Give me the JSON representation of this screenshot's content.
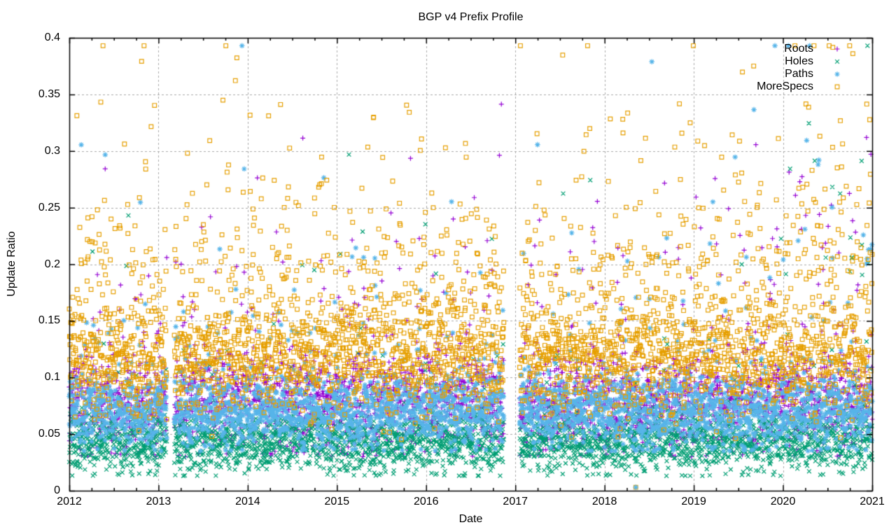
{
  "chart_data": {
    "type": "scatter",
    "title": "BGP v4 Prefix Profile",
    "xlabel": "Date",
    "ylabel": "Update Ratio",
    "x_axis": {
      "min": 2012,
      "max": 2021,
      "tick_labels": [
        "2012",
        "2013",
        "2014",
        "2015",
        "2016",
        "2017",
        "2018",
        "2019",
        "2020",
        "2021"
      ],
      "minor_ticks_per_interval": 3
    },
    "y_axis": {
      "min": 0,
      "max": 0.4,
      "tick_labels": [
        "0",
        "0.05",
        "0.1",
        "0.15",
        "0.2",
        "0.25",
        "0.3",
        "0.35",
        "0.4"
      ]
    },
    "grid": {
      "show": true,
      "color": "#a9a9a9",
      "dash": [
        3,
        3
      ]
    },
    "legend": {
      "position": "top-right-inside",
      "entries": [
        "Roots",
        "Holes",
        "Paths",
        "MoreSpecs"
      ]
    },
    "sampling": "daily points per series, 2012-01 through 2021-01",
    "data_gaps": [
      [
        2013.094,
        2013.175
      ],
      [
        2016.873,
        2017.046
      ]
    ],
    "seed": 1337,
    "series": [
      {
        "name": "Roots",
        "marker": "plus",
        "color": "#9400D3",
        "distribution": {
          "components": [
            {
              "weight": 0.9,
              "type": "normal",
              "mu": 0.078,
              "sigma": 0.02
            },
            {
              "weight": 0.094,
              "type": "normal",
              "mu": 0.145,
              "sigma": 0.045
            },
            {
              "weight": 0.006,
              "type": "exp_tail",
              "base": 0.21,
              "scale": 0.06
            }
          ],
          "min": 0.03,
          "max": 0.393,
          "late_outlier_boost": 4
        }
      },
      {
        "name": "Holes",
        "marker": "cross",
        "color": "#009E73",
        "distribution": {
          "components": [
            {
              "weight": 0.95,
              "type": "normal",
              "mu": 0.043,
              "sigma": 0.013
            },
            {
              "weight": 0.045,
              "type": "normal",
              "mu": 0.085,
              "sigma": 0.028
            },
            {
              "weight": 0.005,
              "type": "exp_tail",
              "base": 0.19,
              "scale": 0.06
            }
          ],
          "min": 0.013,
          "max": 0.393,
          "late_outlier_boost": 4
        }
      },
      {
        "name": "Paths",
        "marker": "asterisk",
        "color": "#56B4E9",
        "distribution": {
          "components": [
            {
              "weight": 0.93,
              "type": "normal",
              "mu": 0.071,
              "sigma": 0.016
            },
            {
              "weight": 0.064,
              "type": "normal",
              "mu": 0.12,
              "sigma": 0.04
            },
            {
              "weight": 0.006,
              "type": "exp_tail",
              "base": 0.2,
              "scale": 0.07
            }
          ],
          "min": 0.035,
          "max": 0.393,
          "late_outlier_boost": 4
        }
      },
      {
        "name": "MoreSpecs",
        "marker": "square",
        "color": "#E69F00",
        "distribution": {
          "components": [
            {
              "weight": 0.68,
              "type": "normal",
              "mu": 0.115,
              "sigma": 0.024
            },
            {
              "weight": 0.22,
              "type": "normal",
              "mu": 0.155,
              "sigma": 0.035
            },
            {
              "weight": 0.1,
              "type": "exp_tail",
              "base": 0.19,
              "scale": 0.06
            }
          ],
          "min": 0.045,
          "max": 0.393,
          "late_outlier_boost": 0.5
        }
      }
    ],
    "anomalies": [
      {
        "series": "MoreSpecs",
        "x": 2018.35,
        "y": 0.003
      },
      {
        "series": "Paths",
        "x": 2018.35,
        "y": 0.003
      }
    ]
  }
}
